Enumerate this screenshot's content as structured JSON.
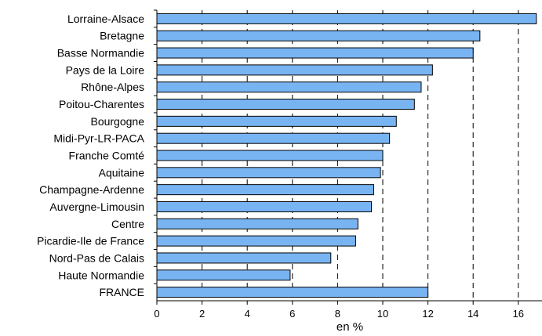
{
  "chart_data": {
    "type": "bar",
    "orientation": "horizontal",
    "categories": [
      "Lorraine-Alsace",
      "Bretagne",
      "Basse Normandie",
      "Pays de la Loire",
      "Rhône-Alpes",
      "Poitou-Charentes",
      "Bourgogne",
      "Midi-Pyr-LR-PACA",
      "Franche Comté",
      "Aquitaine",
      "Champagne-Ardenne",
      "Auvergne-Limousin",
      "Centre",
      "Picardie-Ile de France",
      "Nord-Pas de Calais",
      "Haute Normandie",
      "FRANCE"
    ],
    "values": [
      16.8,
      14.3,
      14.0,
      12.2,
      11.7,
      11.4,
      10.6,
      10.3,
      10.0,
      9.9,
      9.6,
      9.5,
      8.9,
      8.8,
      7.7,
      5.9,
      12.0
    ],
    "title": "",
    "xlabel": "en %",
    "ylabel": "",
    "xlim": [
      0,
      17
    ],
    "xticks": [
      0,
      2,
      4,
      6,
      8,
      10,
      12,
      14,
      16
    ],
    "xtick_labels": [
      "0",
      "2",
      "4",
      "6",
      "8",
      "10",
      "12",
      "14",
      "16"
    ],
    "grid": "vertical dashed",
    "legend": "none",
    "bar_color": "#79b4f2",
    "bar_edge_color": "#000000"
  }
}
